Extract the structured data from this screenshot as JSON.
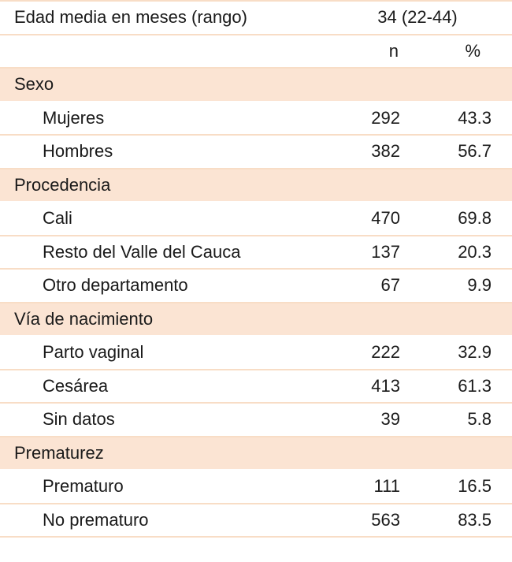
{
  "table": {
    "age_label": "Edad media en meses (rango)",
    "age_value": "34 (22-44)",
    "header_n": "n",
    "header_pct": "%",
    "sections": [
      {
        "title": "Sexo",
        "rows": [
          {
            "label": "Mujeres",
            "n": "292",
            "pct": "43.3"
          },
          {
            "label": "Hombres",
            "n": "382",
            "pct": "56.7"
          }
        ]
      },
      {
        "title": "Procedencia",
        "rows": [
          {
            "label": "Cali",
            "n": "470",
            "pct": "69.8"
          },
          {
            "label": "Resto del Valle del Cauca",
            "n": "137",
            "pct": "20.3"
          },
          {
            "label": "Otro departamento",
            "n": "67",
            "pct": "9.9"
          }
        ]
      },
      {
        "title": "Vía de nacimiento",
        "rows": [
          {
            "label": "Parto vaginal",
            "n": "222",
            "pct": "32.9"
          },
          {
            "label": "Cesárea",
            "n": "413",
            "pct": "61.3"
          },
          {
            "label": "Sin datos",
            "n": "39",
            "pct": "5.8"
          }
        ]
      },
      {
        "title": "Prematurez",
        "rows": [
          {
            "label": "Prematuro",
            "n": "111",
            "pct": "16.5"
          },
          {
            "label": "No prematuro",
            "n": "563",
            "pct": "83.5"
          }
        ]
      }
    ]
  },
  "colors": {
    "section_background": "#fbe4d3",
    "rule": "#f8ddc6",
    "text": "#1a1a1a"
  }
}
